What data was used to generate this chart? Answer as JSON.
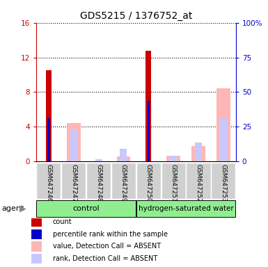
{
  "title": "GDS5215 / 1376752_at",
  "samples": [
    "GSM647246",
    "GSM647247",
    "GSM647248",
    "GSM647249",
    "GSM647250",
    "GSM647251",
    "GSM647252",
    "GSM647253"
  ],
  "group_labels": [
    "control",
    "hydrogen-saturated water"
  ],
  "red_bars": [
    10.5,
    0,
    0,
    0,
    12.8,
    0,
    0,
    0
  ],
  "blue_bars": [
    5.0,
    0,
    0,
    0,
    7.0,
    0,
    0,
    0
  ],
  "pink_bars": [
    0,
    4.4,
    0.0,
    0.6,
    0,
    0.7,
    1.8,
    8.4
  ],
  "lavender_bars": [
    0,
    3.7,
    0.3,
    1.5,
    0,
    0.65,
    2.2,
    5.0
  ],
  "ylim_left": [
    0,
    16
  ],
  "ylim_right": [
    0,
    100
  ],
  "yticks_left": [
    0,
    4,
    8,
    12,
    16
  ],
  "ytick_labels_left": [
    "0",
    "4",
    "8",
    "12",
    "16"
  ],
  "yticks_right": [
    0,
    25,
    50,
    75,
    100
  ],
  "ytick_labels_right": [
    "0",
    "25",
    "50",
    "75",
    "100%"
  ],
  "left_axis_color": "#cc0000",
  "right_axis_color": "#0000cc",
  "legend_items": [
    {
      "label": "count",
      "color": "#cc0000"
    },
    {
      "label": "percentile rank within the sample",
      "color": "#0000cc"
    },
    {
      "label": "value, Detection Call = ABSENT",
      "color": "#ffb6b6"
    },
    {
      "label": "rank, Detection Call = ABSENT",
      "color": "#c8c8ff"
    }
  ]
}
